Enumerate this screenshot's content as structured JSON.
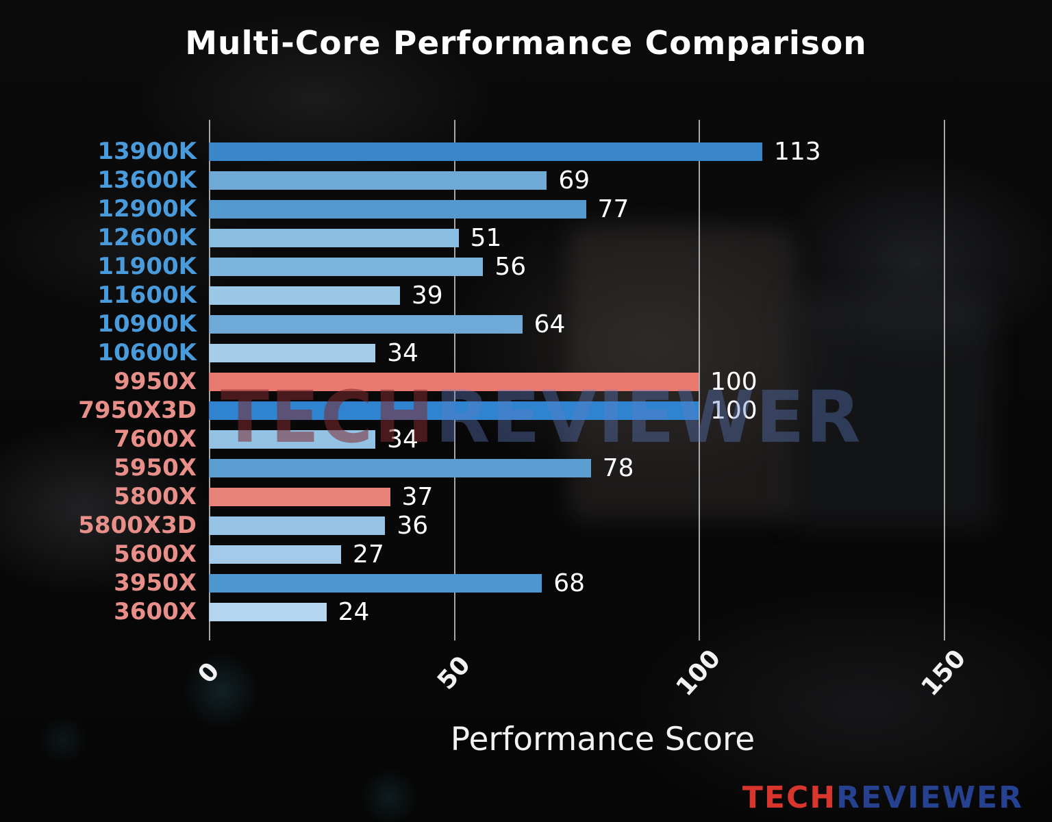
{
  "title": "Multi-Core Performance Comparison",
  "x_axis_label": "Performance Score",
  "watermark": {
    "tech": "TECH",
    "reviewer": "REVIEWER"
  },
  "logo": {
    "tech": "TECH",
    "reviewer": "REVIEWER"
  },
  "colors": {
    "intel_label": "#4a9bdc",
    "amd_label": "#e78f88",
    "highlight_bar": "#e87a70",
    "value_label": "#ffffff",
    "gridline": "#ebebeb"
  },
  "chart_data": {
    "type": "bar",
    "orientation": "horizontal",
    "title": "Multi-Core Performance Comparison",
    "xlabel": "Performance Score",
    "xlim": [
      0,
      160
    ],
    "xticks": [
      "0",
      "50",
      "100",
      "150"
    ],
    "xtick_values": [
      0,
      50,
      100,
      150
    ],
    "grid": true,
    "legend": false,
    "categories": [
      "13900K",
      "13600K",
      "12900K",
      "12600K",
      "11900K",
      "11600K",
      "10900K",
      "10600K",
      "9950X",
      "7950X3D",
      "7600X",
      "5950X",
      "5800X",
      "5800X3D",
      "5600X",
      "3950X",
      "3600X"
    ],
    "values": [
      113,
      69,
      77,
      51,
      56,
      39,
      64,
      34,
      100,
      100,
      34,
      78,
      37,
      36,
      27,
      68,
      24
    ],
    "bar_colors": [
      "#3a87c9",
      "#6fa9d6",
      "#549ad0",
      "#8abde2",
      "#7db4dd",
      "#9cc8e8",
      "#6ea9d8",
      "#a5cdea",
      "#e87a70",
      "#2f83cf",
      "#93c2e5",
      "#5b9fd2",
      "#e8837a",
      "#97c4e6",
      "#a3cbe9",
      "#4e96cf",
      "#b5d5ee"
    ],
    "label_colors": [
      "#4a9bdc",
      "#4a9bdc",
      "#4a9bdc",
      "#4a9bdc",
      "#4a9bdc",
      "#4a9bdc",
      "#4a9bdc",
      "#4a9bdc",
      "#e78f88",
      "#e78f88",
      "#e78f88",
      "#e78f88",
      "#e78f88",
      "#e78f88",
      "#e78f88",
      "#e78f88",
      "#e78f88"
    ]
  }
}
